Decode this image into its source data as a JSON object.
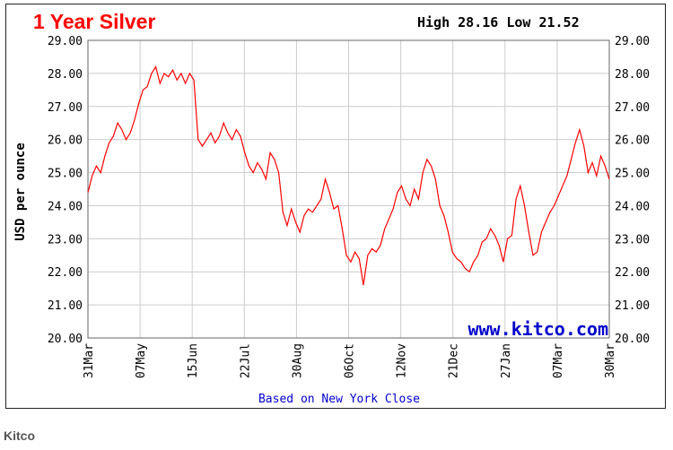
{
  "source": "Kitco",
  "chart_data": {
    "type": "line",
    "title": "1 Year Silver",
    "high_low_text": "High 28.16 Low 21.52",
    "ylabel": "USD per ounce",
    "watermark": "www.kitco.com",
    "footnote": "Based on New York Close",
    "ylim": [
      20,
      29
    ],
    "y_ticks": [
      "20.00",
      "21.00",
      "22.00",
      "23.00",
      "24.00",
      "25.00",
      "26.00",
      "27.00",
      "28.00",
      "29.00"
    ],
    "x_ticks": [
      "31Mar",
      "07May",
      "15Jun",
      "22Jul",
      "30Aug",
      "06Oct",
      "12Nov",
      "21Dec",
      "27Jan",
      "07Mar",
      "30Mar"
    ],
    "grid": true,
    "colors": {
      "title": "#ff0000",
      "line": "#ff0000",
      "watermark": "#0000cc",
      "footnote": "#0000cc",
      "grid": "#cccccc"
    },
    "series": [
      {
        "values": [
          24.4,
          24.9,
          25.2,
          25.0,
          25.5,
          25.9,
          26.1,
          26.5,
          26.3,
          26.0,
          26.2,
          26.6,
          27.1,
          27.5,
          27.6,
          28.0,
          28.2,
          27.7,
          28.0,
          27.9,
          28.1,
          27.8,
          28.0,
          27.7,
          28.0,
          27.8,
          26.0,
          25.8,
          26.0,
          26.2,
          25.9,
          26.1,
          26.5,
          26.2,
          26.0,
          26.3,
          26.1,
          25.6,
          25.2,
          25.0,
          25.3,
          25.1,
          24.8,
          25.6,
          25.4,
          25.0,
          23.8,
          23.4,
          23.9,
          23.5,
          23.2,
          23.7,
          23.9,
          23.8,
          24.0,
          24.2,
          24.8,
          24.4,
          23.9,
          24.0,
          23.3,
          22.5,
          22.3,
          22.6,
          22.4,
          21.6,
          22.5,
          22.7,
          22.6,
          22.8,
          23.3,
          23.6,
          23.9,
          24.4,
          24.6,
          24.2,
          24.0,
          24.5,
          24.2,
          25.0,
          25.4,
          25.2,
          24.8,
          24.0,
          23.7,
          23.2,
          22.6,
          22.4,
          22.3,
          22.1,
          22.0,
          22.3,
          22.5,
          22.9,
          23.0,
          23.3,
          23.1,
          22.8,
          22.3,
          23.0,
          23.1,
          24.2,
          24.6,
          24.0,
          23.2,
          22.5,
          22.6,
          23.2,
          23.5,
          23.8,
          24.0,
          24.3,
          24.6,
          24.9,
          25.4,
          25.9,
          26.3,
          25.8,
          25.0,
          25.3,
          24.9,
          25.5,
          25.2,
          24.8
        ]
      }
    ]
  }
}
